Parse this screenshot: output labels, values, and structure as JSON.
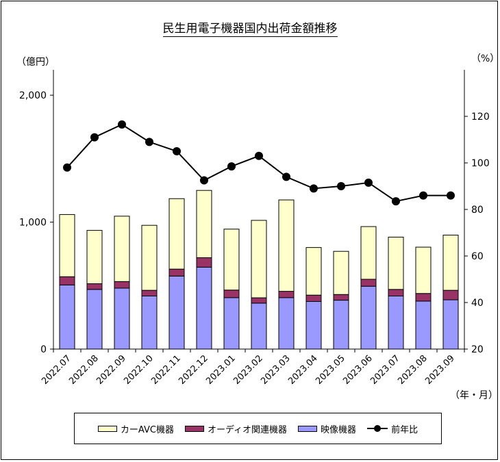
{
  "chart_data": {
    "type": "bar",
    "title": "民生用電子機器国内出荷金額推移",
    "y_unit_left": "（億円）",
    "y_unit_right": "（%）",
    "x_unit": "（年・月）",
    "categories": [
      "2022.07",
      "2022.08",
      "2022.09",
      "2022.10",
      "2022.11",
      "2022.12",
      "2023.01",
      "2023.02",
      "2023.03",
      "2023.04",
      "2023.05",
      "2023.06",
      "2023.07",
      "2023.08",
      "2023.09"
    ],
    "ylim_left": [
      0,
      2000
    ],
    "yticks_left": [
      0,
      1000,
      2000
    ],
    "ytick_labels_left": [
      "0",
      "1,000",
      "2,000"
    ],
    "ylim_right": [
      20,
      140
    ],
    "yticks_right": [
      20,
      40,
      60,
      80,
      100,
      120
    ],
    "stacked": true,
    "series": [
      {
        "name": "映像機器",
        "type": "bar",
        "axis": "left",
        "color": "#9999FF",
        "values": [
          505,
          470,
          480,
          418,
          575,
          645,
          405,
          362,
          405,
          375,
          385,
          495,
          418,
          378,
          388
        ]
      },
      {
        "name": "オーディオ関連機器",
        "type": "bar",
        "axis": "left",
        "color": "#993366",
        "values": [
          65,
          45,
          52,
          45,
          55,
          75,
          60,
          42,
          50,
          50,
          45,
          55,
          52,
          60,
          75
        ]
      },
      {
        "name": "カーAVC機器",
        "type": "bar",
        "axis": "left",
        "color": "#FFFFCC",
        "values": [
          490,
          420,
          515,
          512,
          555,
          530,
          480,
          610,
          720,
          375,
          340,
          415,
          412,
          365,
          435
        ]
      },
      {
        "name": "前年比",
        "type": "line",
        "axis": "right",
        "color": "#000000",
        "values": [
          98,
          111,
          116.5,
          109,
          105,
          92.5,
          98.5,
          103,
          94,
          89,
          90,
          91.5,
          83.5,
          86,
          86
        ]
      }
    ],
    "legend_order": [
      "カーAVC機器",
      "オーディオ関連機器",
      "映像機器",
      "前年比"
    ],
    "legend_position": "bottom",
    "grid": false
  }
}
